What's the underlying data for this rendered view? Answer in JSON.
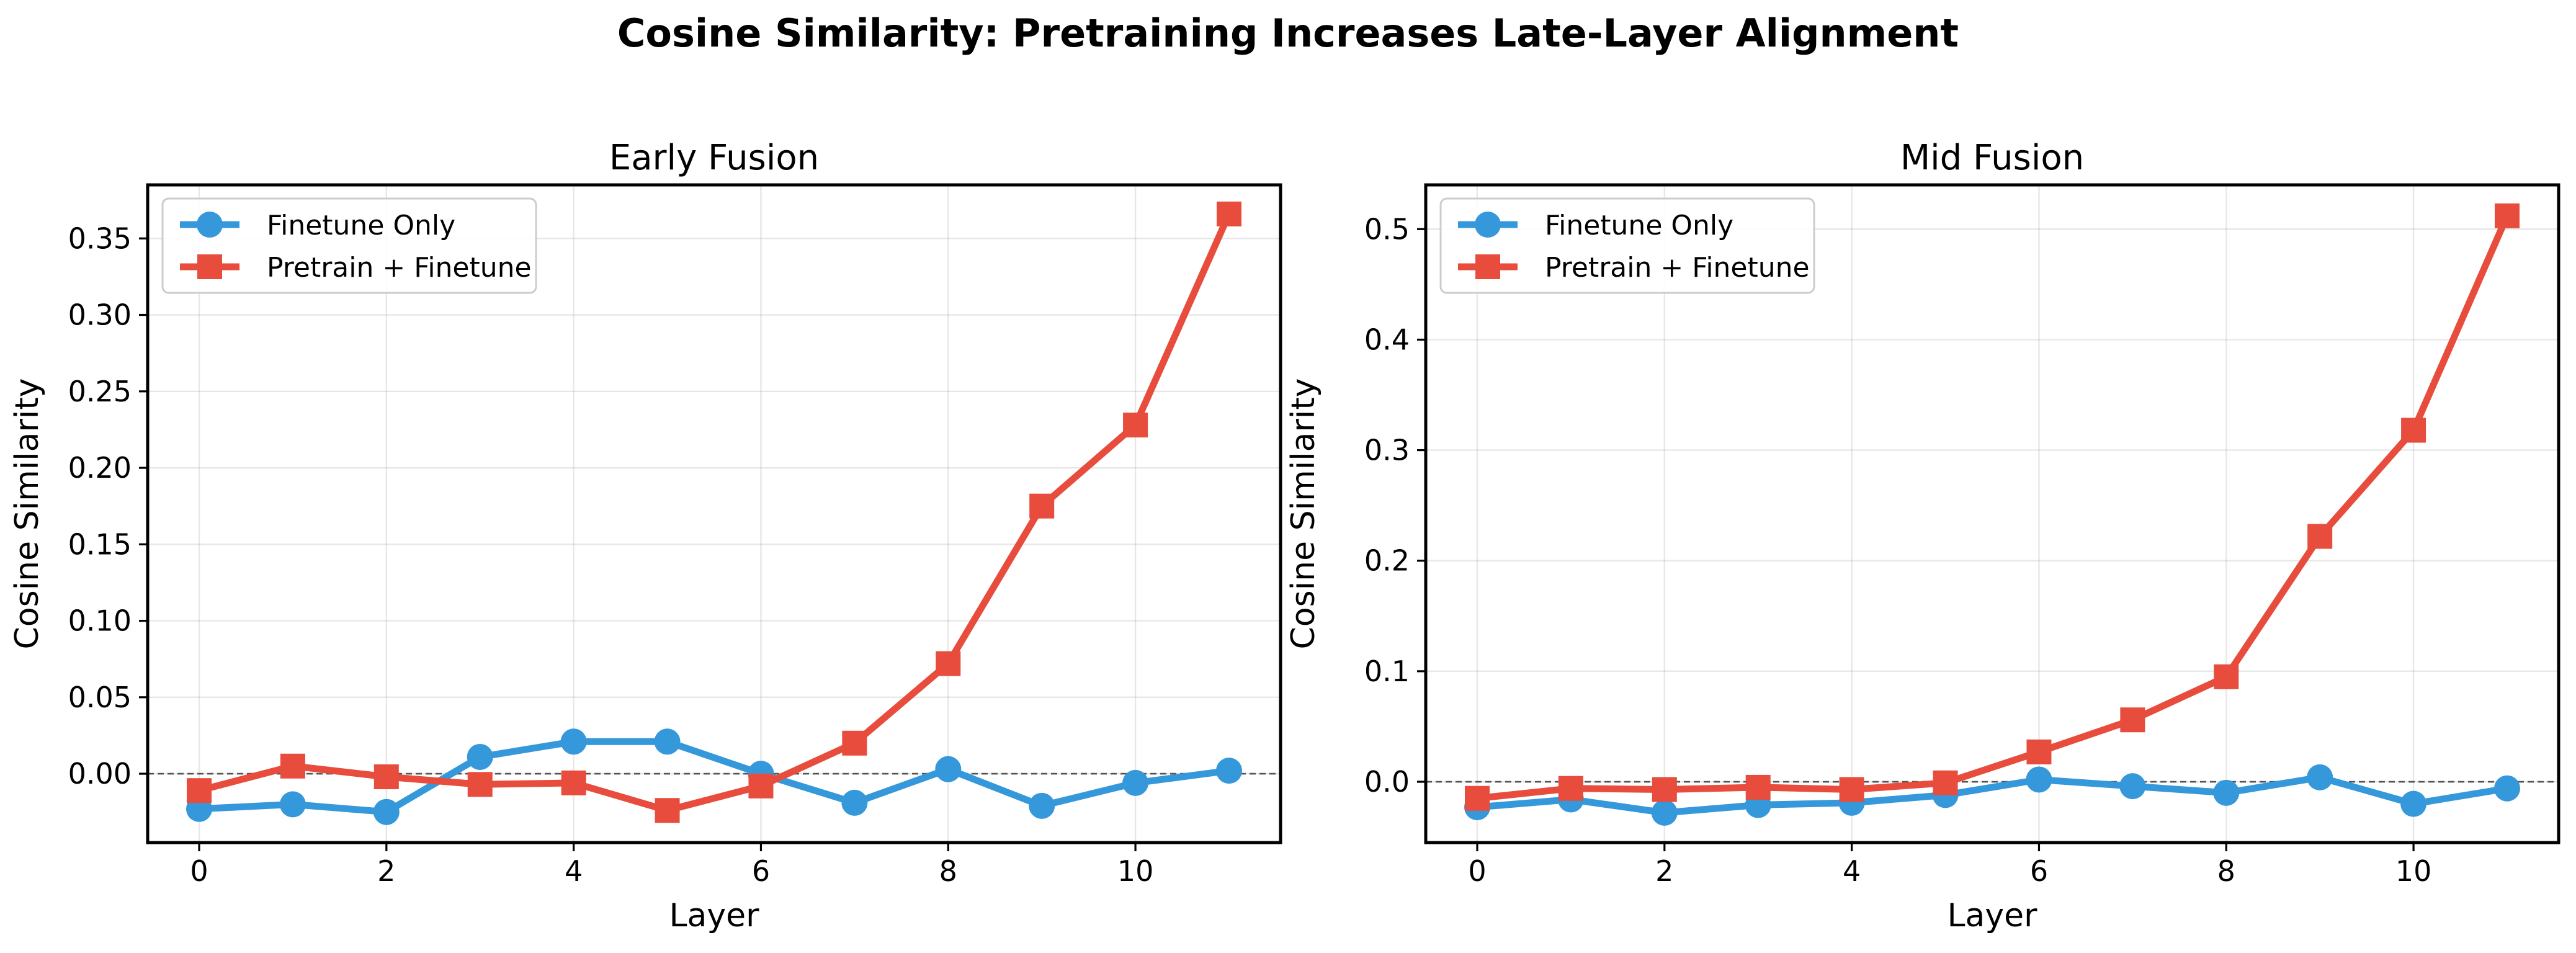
{
  "figure": {
    "title": "Cosine Similarity: Pretraining Increases Late-Layer Alignment"
  },
  "chart_data": [
    {
      "type": "line",
      "title": "Early Fusion",
      "xlabel": "Layer",
      "ylabel": "Cosine Similarity",
      "x": [
        0,
        1,
        2,
        3,
        4,
        5,
        6,
        7,
        8,
        9,
        10,
        11
      ],
      "xlim": [
        -0.55,
        11.55
      ],
      "ylim": [
        -0.045,
        0.385
      ],
      "xticks": [
        0,
        2,
        4,
        6,
        8,
        10
      ],
      "xtick_labels": [
        "0",
        "2",
        "4",
        "6",
        "8",
        "10"
      ],
      "yticks": [
        0.0,
        0.05,
        0.1,
        0.15,
        0.2,
        0.25,
        0.3,
        0.35
      ],
      "ytick_labels": [
        "0.00",
        "0.05",
        "0.10",
        "0.15",
        "0.20",
        "0.25",
        "0.30",
        "0.35"
      ],
      "grid": true,
      "zero_line": true,
      "legend_position": "top-left",
      "series": [
        {
          "name": "Finetune Only",
          "color": "#3498db",
          "marker": "circle",
          "values": [
            -0.023,
            -0.02,
            -0.025,
            0.011,
            0.021,
            0.021,
            0.0,
            -0.019,
            0.003,
            -0.021,
            -0.006,
            0.002
          ]
        },
        {
          "name": "Pretrain + Finetune",
          "color": "#e74c3c",
          "marker": "square",
          "values": [
            -0.011,
            0.005,
            -0.002,
            -0.007,
            -0.006,
            -0.024,
            -0.008,
            0.02,
            0.072,
            0.175,
            0.228,
            0.366
          ]
        }
      ]
    },
    {
      "type": "line",
      "title": "Mid Fusion",
      "xlabel": "Layer",
      "ylabel": "Cosine Similarity",
      "x": [
        0,
        1,
        2,
        3,
        4,
        5,
        6,
        7,
        8,
        9,
        10,
        11
      ],
      "xlim": [
        -0.55,
        11.55
      ],
      "ylim": [
        -0.055,
        0.54
      ],
      "xticks": [
        0,
        2,
        4,
        6,
        8,
        10
      ],
      "xtick_labels": [
        "0",
        "2",
        "4",
        "6",
        "8",
        "10"
      ],
      "yticks": [
        0.0,
        0.1,
        0.2,
        0.3,
        0.4,
        0.5
      ],
      "ytick_labels": [
        "0.0",
        "0.1",
        "0.2",
        "0.3",
        "0.4",
        "0.5"
      ],
      "grid": true,
      "zero_line": true,
      "legend_position": "top-left",
      "series": [
        {
          "name": "Finetune Only",
          "color": "#3498db",
          "marker": "circle",
          "values": [
            -0.023,
            -0.016,
            -0.028,
            -0.021,
            -0.019,
            -0.012,
            0.002,
            -0.004,
            -0.01,
            0.004,
            -0.02,
            -0.006
          ]
        },
        {
          "name": "Pretrain + Finetune",
          "color": "#e74c3c",
          "marker": "square",
          "values": [
            -0.015,
            -0.006,
            -0.007,
            -0.005,
            -0.007,
            -0.001,
            0.027,
            0.056,
            0.095,
            0.222,
            0.318,
            0.512
          ]
        }
      ]
    }
  ]
}
